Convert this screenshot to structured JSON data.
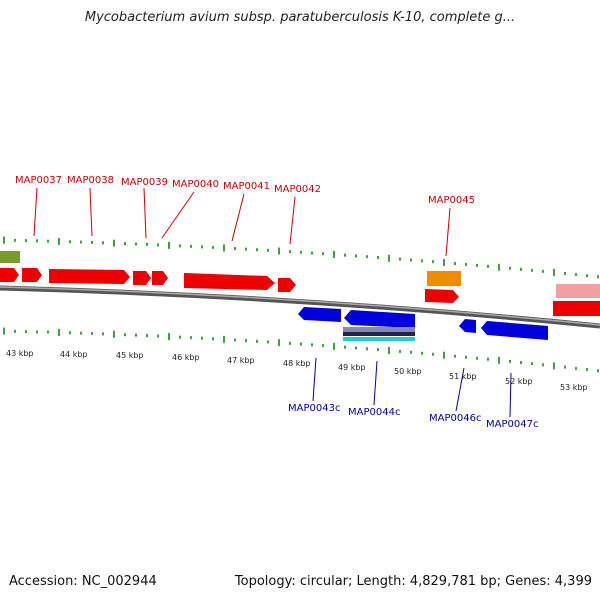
{
  "title": "Mycobacterium avium subsp. paratuberculosis K-10, complete g...",
  "footer": {
    "accession": "Accession: NC_002944",
    "summary": "Topology: circular; Length: 4,829,781 bp; Genes: 4,399"
  },
  "colors": {
    "forward_gene": "#ee0000",
    "reverse_gene": "#0000dd",
    "forward_label": "#cc0000",
    "reverse_label": "#0000aa",
    "tick": "#118811",
    "backbone": "#888888",
    "orange_feature": "#f08c00",
    "olive_feature": "#7a9a2a",
    "pink_feature": "#f0a0a0"
  },
  "forward_genes": [
    "MAP0037",
    "MAP0038",
    "MAP0039",
    "MAP0040",
    "MAP0041",
    "MAP0042",
    "MAP0045"
  ],
  "reverse_genes": [
    "MAP0043c",
    "MAP0044c",
    "MAP0046c",
    "MAP0047c"
  ],
  "kbp_labels": [
    "43 kbp",
    "44 kbp",
    "45 kbp",
    "46 kbp",
    "47 kbp",
    "48 kbp",
    "49 kbp",
    "50 kbp",
    "51 kbp",
    "52 kbp",
    "53 kbp"
  ]
}
